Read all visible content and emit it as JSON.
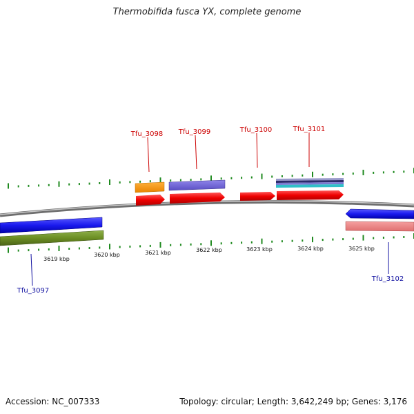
{
  "title": "Thermobifida fusca YX, complete genome",
  "footer": {
    "accession": "Accession: NC_007333",
    "topology": "Topology: circular; Length: 3,642,249 bp; Genes: 3,176"
  },
  "colors": {
    "backbone": "#8a8a8a",
    "tick": "#1f8a1f",
    "label_top": "#cc0000",
    "label_bottom": "#1010a0"
  },
  "scale": {
    "unit": "kbp",
    "labels": [
      "3619 kbp",
      "3620 kbp",
      "3621 kbp",
      "3622 kbp",
      "3623 kbp",
      "3624 kbp",
      "3625 kbp"
    ]
  },
  "labels_top": [
    "Tfu_3098",
    "Tfu_3099",
    "Tfu_3100",
    "Tfu_3101"
  ],
  "labels_bottom": [
    "Tfu_3097",
    "Tfu_3102"
  ]
}
